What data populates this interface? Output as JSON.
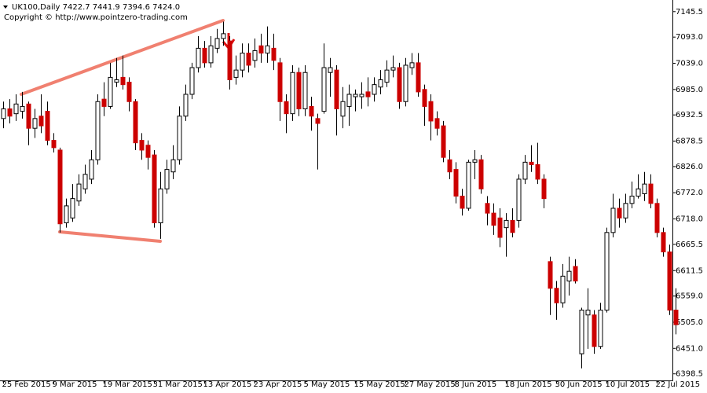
{
  "chart_data": {
    "type": "candlestick",
    "header": "UK100,Daily  7422.7 7441.9 7394.6 7424.0",
    "copyright": "Copyright © http://www.pointzero-trading.com",
    "up_color": "#ffffff",
    "down_color": "#cc0000",
    "categories": [
      "25 Feb 2015",
      null,
      null,
      null,
      null,
      null,
      null,
      null,
      "9 Mar 2015",
      null,
      null,
      null,
      null,
      null,
      null,
      null,
      "19 Mar 2015",
      null,
      null,
      null,
      null,
      null,
      null,
      null,
      "31 Mar 2015",
      null,
      null,
      null,
      null,
      null,
      null,
      null,
      "13 Apr 2015",
      null,
      null,
      null,
      null,
      null,
      null,
      null,
      "23 Apr 2015",
      null,
      null,
      null,
      null,
      null,
      null,
      null,
      "5 May 2015",
      null,
      null,
      null,
      null,
      null,
      null,
      null,
      "15 May 2015",
      null,
      null,
      null,
      null,
      null,
      null,
      null,
      "27 May 2015",
      null,
      null,
      null,
      null,
      null,
      null,
      null,
      "8 Jun 2015",
      null,
      null,
      null,
      null,
      null,
      null,
      null,
      "18 Jun 2015",
      null,
      null,
      null,
      null,
      null,
      null,
      null,
      "30 Jun 2015",
      null,
      null,
      null,
      null,
      null,
      null,
      null,
      "10 Jul 2015",
      null,
      null,
      null,
      null,
      null,
      null,
      null,
      "22 Jul 2015",
      null,
      null,
      null
    ],
    "open": [
      6925,
      6945,
      6935,
      6940,
      6955,
      6905,
      6930,
      6940,
      6880,
      6860,
      6710,
      6720,
      6755,
      6780,
      6800,
      6840,
      6965,
      6950,
      7000,
      7010,
      7000,
      6960,
      6880,
      6870,
      6850,
      6710,
      6780,
      6815,
      6840,
      6930,
      6975,
      7030,
      7070,
      7040,
      7070,
      7090,
      7085,
      7010,
      7025,
      7060,
      7045,
      7075,
      7060,
      7070,
      7040,
      6960,
      6935,
      7020,
      6945,
      6950,
      6925,
      6940,
      7020,
      7025,
      6930,
      6950,
      6970,
      6970,
      6980,
      6975,
      6990,
      7000,
      7025,
      7030,
      6960,
      7030,
      7040,
      6985,
      6960,
      6925,
      6910,
      6840,
      6820,
      6765,
      6740,
      6835,
      6840,
      6750,
      6730,
      6720,
      6700,
      6715,
      6715,
      6800,
      6835,
      6830,
      6800,
      6630,
      6575,
      6545,
      6590,
      6620,
      6440,
      6520,
      6520,
      6455,
      6530,
      6690,
      6740,
      6720,
      6750,
      6765,
      6770,
      6790,
      6750,
      6690,
      6650,
      6530
    ],
    "high": [
      6960,
      6965,
      6975,
      6980,
      6960,
      6945,
      6975,
      6960,
      6895,
      6865,
      6760,
      6790,
      6810,
      6830,
      6860,
      6975,
      7000,
      7040,
      7050,
      7055,
      7010,
      6965,
      6895,
      6880,
      6860,
      6815,
      6840,
      6870,
      6950,
      6995,
      7040,
      7095,
      7085,
      7095,
      7110,
      7125,
      7095,
      7055,
      7080,
      7080,
      7090,
      7100,
      7115,
      7100,
      7050,
      6975,
      7035,
      7030,
      7035,
      6970,
      6935,
      7080,
      7050,
      7035,
      6990,
      6995,
      6985,
      7000,
      7010,
      7010,
      7025,
      7045,
      7055,
      7040,
      7050,
      7060,
      7060,
      6995,
      6975,
      6940,
      6920,
      6860,
      6835,
      6780,
      6840,
      6860,
      6850,
      6765,
      6750,
      6740,
      6730,
      6740,
      6810,
      6850,
      6870,
      6875,
      6810,
      6640,
      6590,
      6625,
      6640,
      6635,
      6535,
      6575,
      6530,
      6545,
      6700,
      6770,
      6760,
      6770,
      6795,
      6810,
      6815,
      6810,
      6760,
      6700,
      6665,
      6575
    ],
    "low": [
      6905,
      6915,
      6920,
      6925,
      6870,
      6885,
      6895,
      6870,
      6855,
      6690,
      6700,
      6712,
      6745,
      6770,
      6790,
      6830,
      6930,
      6945,
      6990,
      6985,
      6940,
      6860,
      6840,
      6820,
      6700,
      6677,
      6770,
      6800,
      6830,
      6920,
      6965,
      7020,
      7030,
      7030,
      7060,
      7075,
      6985,
      6995,
      7010,
      7020,
      7030,
      7040,
      7040,
      7025,
      6920,
      6895,
      6920,
      6930,
      6930,
      6900,
      6820,
      6935,
      6970,
      6890,
      6905,
      6910,
      6940,
      6945,
      6950,
      6960,
      6975,
      6990,
      7010,
      6945,
      6950,
      7015,
      6970,
      6910,
      6880,
      6890,
      6835,
      6800,
      6750,
      6725,
      6735,
      6800,
      6770,
      6705,
      6685,
      6660,
      6640,
      6680,
      6700,
      6790,
      6815,
      6790,
      6740,
      6520,
      6510,
      6535,
      6560,
      6585,
      6410,
      6450,
      6440,
      6450,
      6525,
      6680,
      6700,
      6710,
      6740,
      6760,
      6755,
      6740,
      6680,
      6640,
      6520,
      6480
    ],
    "close": [
      6945,
      6930,
      6955,
      6950,
      6905,
      6925,
      6910,
      6880,
      6865,
      6708,
      6745,
      6760,
      6790,
      6810,
      6840,
      6960,
      6950,
      7010,
      7005,
      6995,
      6960,
      6875,
      6860,
      6845,
      6710,
      6780,
      6820,
      6840,
      6930,
      6975,
      7030,
      7070,
      7040,
      7075,
      7090,
      7100,
      7005,
      7025,
      7060,
      7035,
      7065,
      7060,
      7075,
      7045,
      6960,
      6935,
      7020,
      6945,
      7020,
      6930,
      6915,
      7030,
      7030,
      6945,
      6960,
      6975,
      6975,
      6975,
      6970,
      6995,
      7005,
      7025,
      7030,
      6960,
      7035,
      7040,
      6980,
      6950,
      6920,
      6905,
      6845,
      6815,
      6765,
      6740,
      6835,
      6840,
      6780,
      6730,
      6705,
      6680,
      6715,
      6690,
      6800,
      6835,
      6830,
      6800,
      6760,
      6575,
      6545,
      6600,
      6610,
      6590,
      6530,
      6530,
      6455,
      6530,
      6690,
      6740,
      6720,
      6750,
      6765,
      6780,
      6790,
      6750,
      6690,
      6650,
      6530,
      6500
    ],
    "ylim": [
      6385,
      7163
    ],
    "yticks": [
      7145.5,
      {
        "value": 7093,
        "label": "7093.0"
      },
      {
        "value": 7039,
        "label": "7039.0"
      },
      {
        "value": 6985,
        "label": "6985.0"
      },
      6932.5,
      6878.5,
      {
        "value": 6826,
        "label": "6826.0"
      },
      {
        "value": 6772,
        "label": "6772.0"
      },
      {
        "value": 6718,
        "label": "6718.0"
      },
      6665.5,
      6611.5,
      {
        "value": 6559,
        "label": "6559.0"
      },
      {
        "value": 6505,
        "label": "6505.0"
      },
      {
        "value": 6451,
        "label": "6451.0"
      },
      6398.5
    ]
  }
}
